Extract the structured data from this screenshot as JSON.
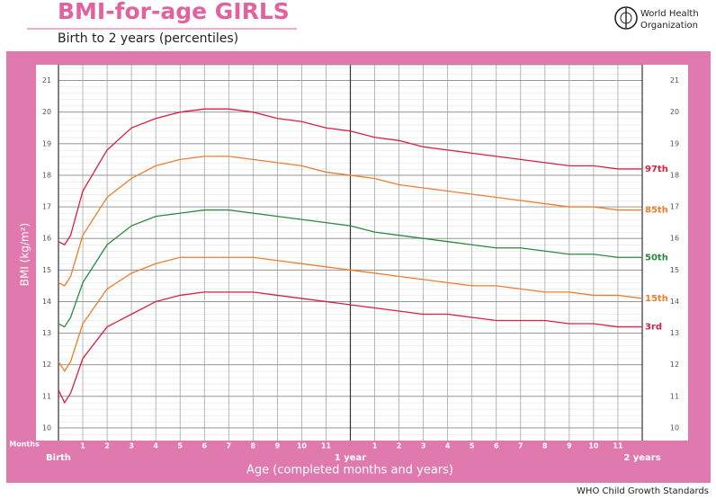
{
  "chart_data": {
    "type": "line",
    "title": "BMI-for-age GIRLS",
    "subtitle": "Birth to 2 years (percentiles)",
    "logo_text": [
      "World Health",
      "Organization"
    ],
    "source": "WHO Child Growth Standards",
    "ylabel": "BMI (kg/m²)",
    "xlabel": "Age (completed months and years)",
    "months_label": "Months",
    "xlim": [
      0,
      24
    ],
    "ylim": [
      9.6,
      21.5
    ],
    "yticks": [
      10,
      11,
      12,
      13,
      14,
      15,
      16,
      17,
      18,
      19,
      20,
      21
    ],
    "xticks": [
      1,
      2,
      3,
      4,
      5,
      6,
      7,
      8,
      9,
      10,
      11,
      {
        "value": 13,
        "label": "1"
      },
      {
        "value": 14,
        "label": "2"
      },
      {
        "value": 15,
        "label": "3"
      },
      {
        "value": 16,
        "label": "4"
      },
      {
        "value": 17,
        "label": "5"
      },
      {
        "value": 18,
        "label": "6"
      },
      {
        "value": 19,
        "label": "7"
      },
      {
        "value": 20,
        "label": "8"
      },
      {
        "value": 21,
        "label": "9"
      },
      {
        "value": 22,
        "label": "10"
      },
      {
        "value": 23,
        "label": "11"
      }
    ],
    "year_ticks": [
      {
        "value": 0,
        "label": "Birth"
      },
      {
        "value": 12,
        "label": "1 year"
      },
      {
        "value": 24,
        "label": "2 years"
      }
    ],
    "grid": true,
    "x": [
      0,
      0.25,
      0.5,
      1,
      2,
      3,
      4,
      5,
      6,
      7,
      8,
      9,
      10,
      11,
      12,
      13,
      14,
      15,
      16,
      17,
      18,
      19,
      20,
      21,
      22,
      23,
      24
    ],
    "series": [
      {
        "name": "97th",
        "color": "#d9203f",
        "values": [
          15.9,
          15.8,
          16.1,
          17.5,
          18.8,
          19.5,
          19.8,
          20.0,
          20.1,
          20.1,
          20.0,
          19.8,
          19.7,
          19.5,
          19.4,
          19.2,
          19.1,
          18.9,
          18.8,
          18.7,
          18.6,
          18.5,
          18.4,
          18.3,
          18.3,
          18.2,
          18.2
        ]
      },
      {
        "name": "85th",
        "color": "#ee7d2e",
        "values": [
          14.6,
          14.5,
          14.8,
          16.1,
          17.3,
          17.9,
          18.3,
          18.5,
          18.6,
          18.6,
          18.5,
          18.4,
          18.3,
          18.1,
          18.0,
          17.9,
          17.7,
          17.6,
          17.5,
          17.4,
          17.3,
          17.2,
          17.1,
          17.0,
          17.0,
          16.9,
          16.9
        ]
      },
      {
        "name": "50th",
        "color": "#2a8a3c",
        "values": [
          13.3,
          13.2,
          13.5,
          14.6,
          15.8,
          16.4,
          16.7,
          16.8,
          16.9,
          16.9,
          16.8,
          16.7,
          16.6,
          16.5,
          16.4,
          16.2,
          16.1,
          16.0,
          15.9,
          15.8,
          15.7,
          15.7,
          15.6,
          15.5,
          15.5,
          15.4,
          15.4
        ]
      },
      {
        "name": "15th",
        "color": "#ee7d2e",
        "values": [
          12.1,
          11.8,
          12.1,
          13.3,
          14.4,
          14.9,
          15.2,
          15.4,
          15.4,
          15.4,
          15.4,
          15.3,
          15.2,
          15.1,
          15.0,
          14.9,
          14.8,
          14.7,
          14.6,
          14.5,
          14.5,
          14.4,
          14.3,
          14.3,
          14.2,
          14.2,
          14.1
        ]
      },
      {
        "name": "3rd",
        "color": "#d9203f",
        "values": [
          11.2,
          10.8,
          11.1,
          12.2,
          13.2,
          13.6,
          14.0,
          14.2,
          14.3,
          14.3,
          14.3,
          14.2,
          14.1,
          14.0,
          13.9,
          13.8,
          13.7,
          13.6,
          13.6,
          13.5,
          13.4,
          13.4,
          13.4,
          13.3,
          13.3,
          13.2,
          13.2
        ]
      }
    ]
  }
}
